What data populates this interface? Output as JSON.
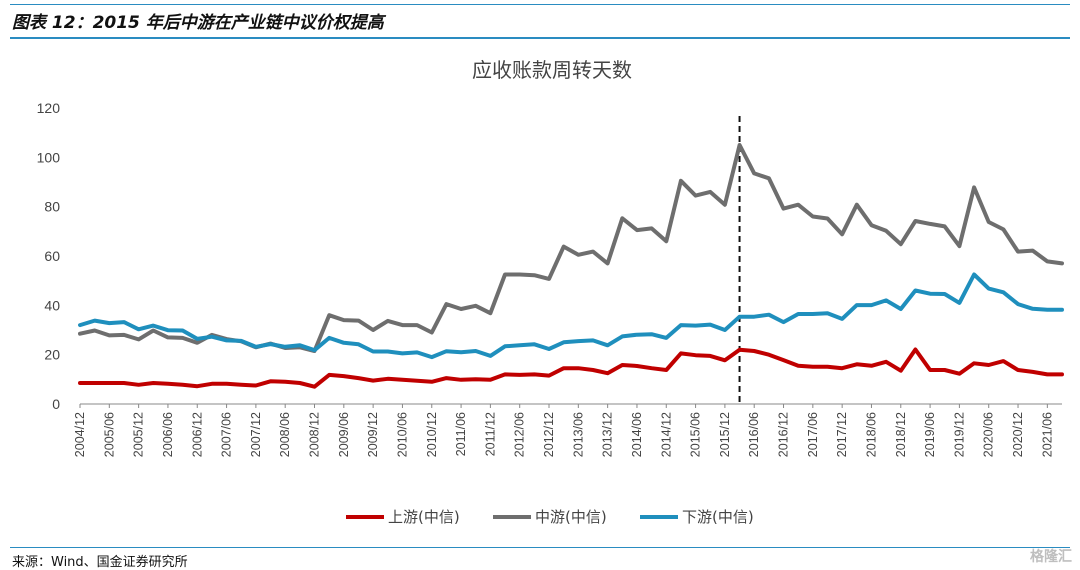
{
  "header": {
    "title": "图表 12：2015 年后中游在产业链中议价权提高"
  },
  "footer": {
    "source": "来源：Wind、国金证券研究所",
    "watermark": "格隆汇"
  },
  "chart_data": {
    "type": "line",
    "title": "应收账款周转天数",
    "xlabel": "",
    "ylabel": "",
    "ylim": [
      0,
      120
    ],
    "yticks": [
      0,
      20,
      40,
      60,
      80,
      100,
      120
    ],
    "grid": false,
    "legend": "bottom",
    "x": [
      "2004/12",
      "2005/03",
      "2005/06",
      "2005/09",
      "2005/12",
      "2006/03",
      "2006/06",
      "2006/09",
      "2006/12",
      "2007/03",
      "2007/06",
      "2007/09",
      "2007/12",
      "2008/03",
      "2008/06",
      "2008/09",
      "2008/12",
      "2009/03",
      "2009/06",
      "2009/09",
      "2009/12",
      "2010/03",
      "2010/06",
      "2010/09",
      "2010/12",
      "2011/03",
      "2011/06",
      "2011/09",
      "2011/12",
      "2012/03",
      "2012/06",
      "2012/09",
      "2012/12",
      "2013/03",
      "2013/06",
      "2013/09",
      "2013/12",
      "2014/03",
      "2014/06",
      "2014/09",
      "2014/12",
      "2015/03",
      "2015/06",
      "2015/09",
      "2015/12",
      "2016/03",
      "2016/06",
      "2016/09",
      "2016/12",
      "2017/03",
      "2017/06",
      "2017/09",
      "2017/12",
      "2018/03",
      "2018/06",
      "2018/09",
      "2018/12",
      "2019/03",
      "2019/06",
      "2019/09",
      "2019/12",
      "2020/03",
      "2020/06",
      "2020/09",
      "2020/12",
      "2021/03",
      "2021/06",
      "2021/09"
    ],
    "x_tick_labels": [
      "2004/12",
      "2005/06",
      "2005/12",
      "2006/06",
      "2006/12",
      "2007/06",
      "2007/12",
      "2008/06",
      "2008/12",
      "2009/06",
      "2009/12",
      "2010/06",
      "2010/12",
      "2011/06",
      "2011/12",
      "2012/06",
      "2012/12",
      "2013/06",
      "2013/12",
      "2014/06",
      "2014/12",
      "2015/06",
      "2015/12",
      "2016/06",
      "2016/12",
      "2017/06",
      "2017/12",
      "2018/06",
      "2018/12",
      "2019/06",
      "2019/12",
      "2020/06",
      "2020/12",
      "2021/06"
    ],
    "marker_line_x": "2016/03",
    "series": [
      {
        "name": "上游(中信)",
        "color": "#c00000",
        "values": [
          8.5,
          8.5,
          8.5,
          8.5,
          7.8,
          8.5,
          8.2,
          7.8,
          7.2,
          8.2,
          8.2,
          7.8,
          7.5,
          9.2,
          9,
          8.5,
          7,
          11.8,
          11.3,
          10.5,
          9.5,
          10.2,
          9.8,
          9.4,
          9,
          10.5,
          9.8,
          10,
          9.8,
          12,
          11.8,
          12,
          11.5,
          14.5,
          14.5,
          13.8,
          12.5,
          15.8,
          15.4,
          14.5,
          13.8,
          20.5,
          19.8,
          19.5,
          17.7,
          22,
          21.5,
          20,
          17.8,
          15.5,
          15.1,
          15.1,
          14.5,
          16.1,
          15.5,
          17.1,
          13.5,
          22.1,
          13.8,
          13.8,
          12.3,
          16.5,
          15.8,
          17.4,
          13.8,
          13,
          12,
          12
        ]
      },
      {
        "name": "中游(中信)",
        "color": "#6e6e6e",
        "values": [
          28.5,
          29.8,
          27.8,
          28,
          26.2,
          29.8,
          27,
          26.8,
          24.8,
          28,
          26.3,
          25.4,
          23,
          24.5,
          22.7,
          23,
          21.5,
          36,
          34,
          33.8,
          30,
          33.7,
          32,
          32,
          29,
          40.5,
          38.5,
          39.8,
          36.8,
          52.5,
          52.5,
          52.2,
          50.7,
          63.8,
          60.5,
          61.8,
          57,
          75.3,
          70.5,
          71.2,
          66,
          90.5,
          84.5,
          86,
          80.8,
          105,
          93.5,
          91.5,
          79.2,
          80.8,
          76,
          75.2,
          68.8,
          80.8,
          72.5,
          70.2,
          64.8,
          74.2,
          73,
          72,
          64,
          87.8,
          73.8,
          70.8,
          61.8,
          62.2,
          57.8,
          57
        ]
      },
      {
        "name": "下游(中信)",
        "color": "#1f8fbd",
        "values": [
          32,
          33.8,
          32.8,
          33.2,
          30.3,
          31.8,
          29.9,
          29.8,
          26.4,
          27.3,
          25.8,
          25.6,
          23.2,
          24.3,
          23.2,
          23.8,
          21.8,
          26.8,
          24.8,
          24.2,
          21.3,
          21.3,
          20.5,
          20.9,
          19,
          21.4,
          21,
          21.5,
          19.5,
          23.4,
          23.8,
          24.2,
          22.3,
          25,
          25.5,
          25.8,
          23.8,
          27.4,
          28.1,
          28.3,
          26.8,
          32,
          31.8,
          32.2,
          30,
          35.4,
          35.4,
          36.2,
          33.2,
          36.5,
          36.5,
          36.8,
          34.5,
          40.1,
          40.1,
          42,
          38.5,
          46,
          44.7,
          44.6,
          41,
          52.5,
          46.8,
          45.3,
          40.5,
          38.6,
          38.2,
          38.2
        ]
      }
    ]
  }
}
